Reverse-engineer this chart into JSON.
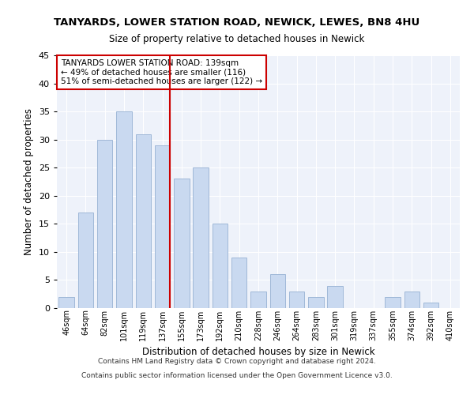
{
  "title": "TANYARDS, LOWER STATION ROAD, NEWICK, LEWES, BN8 4HU",
  "subtitle": "Size of property relative to detached houses in Newick",
  "xlabel": "Distribution of detached houses by size in Newick",
  "ylabel": "Number of detached properties",
  "categories": [
    "46sqm",
    "64sqm",
    "82sqm",
    "101sqm",
    "119sqm",
    "137sqm",
    "155sqm",
    "173sqm",
    "192sqm",
    "210sqm",
    "228sqm",
    "246sqm",
    "264sqm",
    "283sqm",
    "301sqm",
    "319sqm",
    "337sqm",
    "355sqm",
    "374sqm",
    "392sqm",
    "410sqm"
  ],
  "values": [
    2,
    17,
    30,
    35,
    31,
    29,
    23,
    25,
    15,
    9,
    3,
    6,
    3,
    2,
    4,
    0,
    0,
    2,
    3,
    1,
    0
  ],
  "bar_color": "#c9d9f0",
  "bar_edge_color": "#a0b8d8",
  "marker_label": "TANYARDS LOWER STATION ROAD: 139sqm",
  "annotation_line1": "← 49% of detached houses are smaller (116)",
  "annotation_line2": "51% of semi-detached houses are larger (122) →",
  "marker_color": "#cc0000",
  "background_color": "#eef2fa",
  "grid_color": "#ffffff",
  "footer_line1": "Contains HM Land Registry data © Crown copyright and database right 2024.",
  "footer_line2": "Contains public sector information licensed under the Open Government Licence v3.0.",
  "ylim": [
    0,
    45
  ],
  "yticks": [
    0,
    5,
    10,
    15,
    20,
    25,
    30,
    35,
    40,
    45
  ],
  "marker_bar_index": 5,
  "bar_width": 0.8
}
